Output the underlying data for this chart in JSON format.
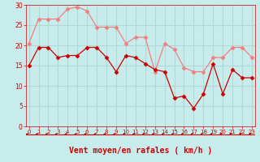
{
  "x": [
    0,
    1,
    2,
    3,
    4,
    5,
    6,
    7,
    8,
    9,
    10,
    11,
    12,
    13,
    14,
    15,
    16,
    17,
    18,
    19,
    20,
    21,
    22,
    23
  ],
  "rafales": [
    20.5,
    26.5,
    26.5,
    26.5,
    29,
    29.5,
    28.5,
    24.5,
    24.5,
    24.5,
    20.5,
    22,
    22,
    13.5,
    20.5,
    19,
    14.5,
    13.5,
    13.5,
    17,
    17,
    19.5,
    19.5,
    17
  ],
  "moyen": [
    15,
    19.5,
    19.5,
    17,
    17.5,
    17.5,
    19.5,
    19.5,
    17,
    13.5,
    17.5,
    17,
    15.5,
    14,
    13.5,
    7,
    7.5,
    4.5,
    8,
    15.5,
    8,
    14,
    12,
    12
  ],
  "line_color_rafales": "#f08080",
  "line_color_moyen": "#cc0000",
  "bg_color": "#c8ecec",
  "grid_color": "#b0d8d8",
  "tick_color": "#cc0000",
  "xlabel": "Vent moyen/en rafales ( km/h )",
  "xlabel_color": "#cc0000",
  "arrow_color": "#cc0000",
  "ylim": [
    0,
    30
  ],
  "xlim": [
    -0.3,
    23.3
  ],
  "yticks": [
    0,
    5,
    10,
    15,
    20,
    25,
    30
  ],
  "xticks": [
    0,
    1,
    2,
    3,
    4,
    5,
    6,
    7,
    8,
    9,
    10,
    11,
    12,
    13,
    14,
    15,
    16,
    17,
    18,
    19,
    20,
    21,
    22,
    23
  ]
}
